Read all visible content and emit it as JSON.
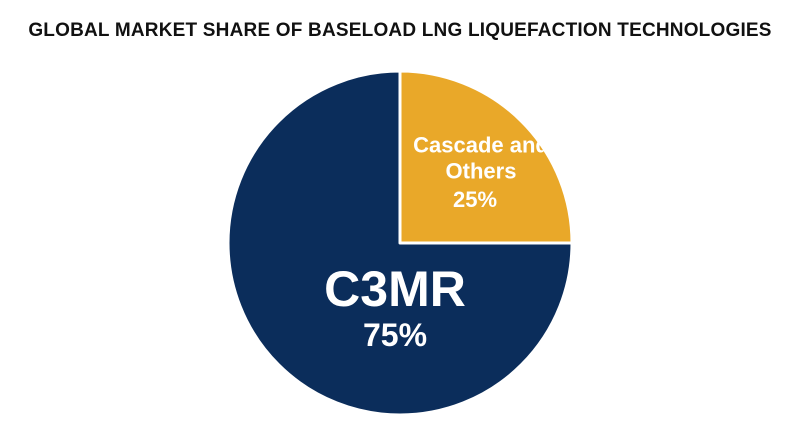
{
  "chart_data": {
    "type": "pie",
    "title": "GLOBAL MARKET SHARE OF BASELOAD LNG LIQUEFACTION TECHNOLOGIES",
    "categories": [
      "Cascade and Others",
      "C3MR"
    ],
    "values": [
      25,
      75
    ],
    "value_labels": [
      "25%",
      "75%"
    ],
    "colors": [
      "#e9a829",
      "#0b2d5b"
    ]
  }
}
